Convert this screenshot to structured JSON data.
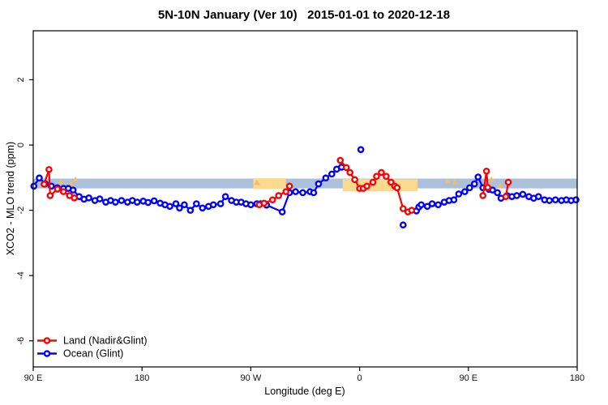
{
  "title": "5N-10N January (Ver 10)   2015-01-01 to 2020-12-18",
  "axes": {
    "x": {
      "label": "Longitude (deg E)",
      "ticks": [
        {
          "lon": 90,
          "label": "90 E"
        },
        {
          "lon": 180,
          "label": "180"
        },
        {
          "lon": 270,
          "label": "90 W"
        },
        {
          "lon": 360,
          "label": "0"
        },
        {
          "lon": 450,
          "label": "90 E"
        },
        {
          "lon": 540,
          "label": "180"
        }
      ]
    },
    "y": {
      "label": "XCO2 - MLO trend (ppm)",
      "ticks": [
        {
          "value": 2,
          "label": "2"
        },
        {
          "value": 0,
          "label": "0"
        },
        {
          "value": -2,
          "label": "-2"
        },
        {
          "value": -4,
          "label": "-4"
        },
        {
          "value": -6,
          "label": "-6"
        }
      ]
    }
  },
  "legend": {
    "items": [
      {
        "label": "Land (Nadir&Glint)",
        "color": "#ff0000"
      },
      {
        "label": "Ocean (Glint)",
        "color": "#0000ff"
      }
    ]
  },
  "colors": {
    "land": "#ff0000",
    "ocean": "#0000ff",
    "reference_band": "#abc0da",
    "highlight_patch": "#fbd98e",
    "triangle_marker": "#edbe6d",
    "axis": "#000000"
  },
  "chart_data": {
    "type": "scatter",
    "title": "5N-10N January (Ver 10)   2015-01-01 to 2020-12-18",
    "xlabel": "Longitude (deg E)",
    "ylabel": "XCO2 - MLO trend (ppm)",
    "xlim": [
      90,
      540
    ],
    "ylim": [
      -6.8,
      3.5
    ],
    "grid": false,
    "legend_position": "bottom-left",
    "reference_band": {
      "y_range": [
        -1.33,
        -1.03
      ],
      "color": "#abc0da"
    },
    "highlight_patches": [
      {
        "x_range": [
          272,
          299
        ],
        "y_range": [
          -1.35,
          -1.02
        ],
        "color": "#fbd98e"
      },
      {
        "x_range": [
          346,
          408
        ],
        "y_range": [
          -1.42,
          -1.05
        ],
        "color": "#fbd98e"
      }
    ],
    "triangle_markers": {
      "color": "#edbe6d",
      "points": [
        [
          113,
          -1.12
        ],
        [
          121,
          -1.17
        ],
        [
          125,
          -1.05
        ],
        [
          275,
          -1.15
        ],
        [
          433,
          -1.1
        ],
        [
          439,
          -1.13
        ],
        [
          469,
          -1.05
        ],
        [
          476,
          -1.25
        ]
      ]
    },
    "series": [
      {
        "name": "Ocean (Glint)",
        "color": "#0000ff",
        "marker": "open-circle",
        "segments": [
          [
            [
              90.5,
              -1.26
            ],
            [
              95,
              -1.01
            ],
            [
              100,
              -1.19
            ],
            [
              105,
              -1.26
            ],
            [
              110,
              -1.31
            ],
            [
              115,
              -1.33
            ],
            [
              119,
              -1.33
            ],
            [
              123,
              -1.38
            ],
            [
              128,
              -1.58
            ],
            [
              132,
              -1.66
            ],
            [
              136,
              -1.62
            ],
            [
              141,
              -1.7
            ],
            [
              145,
              -1.65
            ],
            [
              150,
              -1.75
            ],
            [
              154,
              -1.7
            ],
            [
              158,
              -1.75
            ],
            [
              163,
              -1.7
            ],
            [
              168,
              -1.75
            ],
            [
              172,
              -1.7
            ],
            [
              176,
              -1.75
            ],
            [
              181,
              -1.72
            ],
            [
              185,
              -1.76
            ],
            [
              190,
              -1.71
            ],
            [
              195,
              -1.78
            ],
            [
              199,
              -1.83
            ],
            [
              203,
              -1.88
            ],
            [
              208,
              -1.8
            ],
            [
              211,
              -1.93
            ],
            [
              215,
              -1.83
            ],
            [
              220,
              -2.0
            ],
            [
              225,
              -1.8
            ],
            [
              230,
              -1.93
            ],
            [
              235,
              -1.88
            ],
            [
              239,
              -1.83
            ],
            [
              245,
              -1.8
            ],
            [
              249,
              -1.58
            ],
            [
              254,
              -1.7
            ],
            [
              258,
              -1.75
            ],
            [
              262,
              -1.75
            ],
            [
              266,
              -1.8
            ],
            [
              270,
              -1.83
            ],
            [
              275,
              -1.8
            ],
            [
              278,
              -1.8
            ],
            [
              283,
              -1.84
            ],
            [
              296,
              -2.05
            ],
            [
              302,
              -1.46
            ],
            [
              307,
              -1.43
            ],
            [
              313,
              -1.46
            ],
            [
              319,
              -1.43
            ],
            [
              322,
              -1.46
            ],
            [
              326,
              -1.19
            ],
            [
              332,
              -1.01
            ],
            [
              337,
              -0.89
            ],
            [
              341,
              -0.74
            ],
            [
              345,
              -0.68
            ]
          ],
          [
            [
              407,
              -2.02
            ],
            [
              409,
              -1.9
            ],
            [
              411,
              -1.83
            ],
            [
              416,
              -1.88
            ],
            [
              420,
              -1.8
            ],
            [
              425,
              -1.83
            ],
            [
              430,
              -1.75
            ],
            [
              434,
              -1.7
            ],
            [
              438,
              -1.68
            ],
            [
              442,
              -1.5
            ],
            [
              447,
              -1.43
            ],
            [
              451,
              -1.31
            ],
            [
              455,
              -1.19
            ],
            [
              458,
              -0.98
            ],
            [
              462,
              -1.31
            ],
            [
              467,
              -1.36
            ],
            [
              470,
              -1.38
            ],
            [
              474,
              -1.46
            ],
            [
              477,
              -1.63
            ],
            [
              482,
              -1.55
            ],
            [
              486,
              -1.58
            ],
            [
              490,
              -1.55
            ],
            [
              495,
              -1.51
            ],
            [
              500,
              -1.58
            ],
            [
              504,
              -1.63
            ],
            [
              508,
              -1.58
            ],
            [
              513,
              -1.68
            ],
            [
              517,
              -1.7
            ],
            [
              522,
              -1.68
            ],
            [
              527,
              -1.7
            ],
            [
              531,
              -1.68
            ],
            [
              535,
              -1.7
            ],
            [
              539,
              -1.68
            ]
          ]
        ],
        "isolated_points": [
          [
            361,
            -0.14
          ],
          [
            396,
            -2.45
          ]
        ]
      },
      {
        "name": "Land (Nadir&Glint)",
        "color": "#ff0000",
        "marker": "open-circle",
        "segments": [
          [
            [
              99,
              -1.2
            ],
            [
              103,
              -0.75
            ],
            [
              104,
              -1.55
            ],
            [
              110,
              -1.35
            ],
            [
              115,
              -1.43
            ],
            [
              120,
              -1.55
            ],
            [
              124,
              -1.62
            ]
          ],
          [
            [
              277,
              -1.83
            ],
            [
              281,
              -1.78
            ],
            [
              288,
              -1.68
            ],
            [
              293,
              -1.55
            ],
            [
              299,
              -1.43
            ],
            [
              302,
              -1.26
            ]
          ],
          [
            [
              344,
              -0.47
            ],
            [
              349,
              -0.69
            ],
            [
              352,
              -0.84
            ],
            [
              356,
              -1.06
            ],
            [
              360,
              -1.33
            ],
            [
              363,
              -1.33
            ],
            [
              366,
              -1.26
            ],
            [
              371,
              -1.14
            ],
            [
              374,
              -0.96
            ],
            [
              378,
              -0.84
            ],
            [
              382,
              -0.96
            ],
            [
              386,
              -1.14
            ],
            [
              389,
              -1.26
            ],
            [
              391,
              -1.31
            ],
            [
              396,
              -1.95
            ],
            [
              400,
              -2.05
            ],
            [
              403,
              -2.0
            ]
          ],
          [
            [
              462,
              -1.55
            ],
            [
              465,
              -0.8
            ],
            [
              466,
              -1.3
            ]
          ],
          [
            [
              481,
              -1.58
            ],
            [
              483,
              -1.14
            ]
          ]
        ],
        "isolated_points": []
      }
    ]
  }
}
